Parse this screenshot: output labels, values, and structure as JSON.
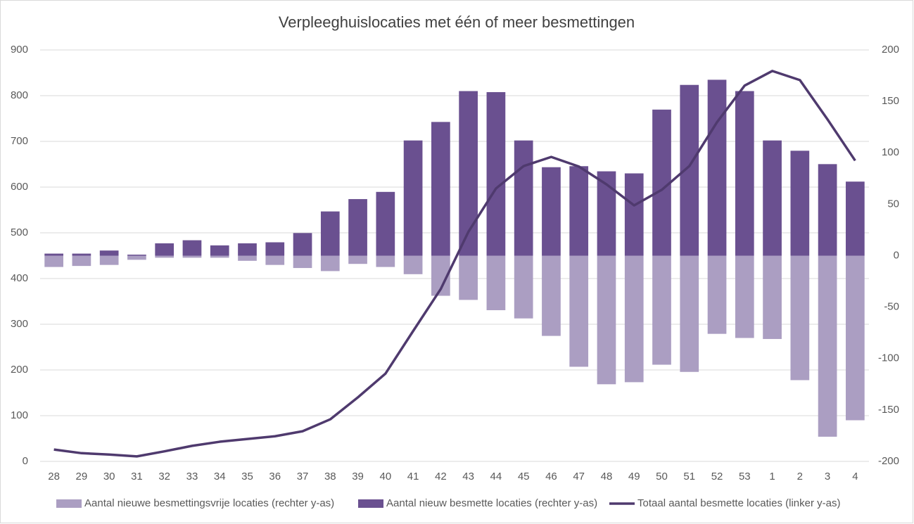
{
  "chart_data": {
    "type": "bar_line",
    "title": "Verpleeghuislocaties met één of meer besmettingen",
    "categories": [
      "28",
      "29",
      "30",
      "31",
      "32",
      "33",
      "34",
      "35",
      "36",
      "37",
      "38",
      "39",
      "40",
      "41",
      "42",
      "43",
      "44",
      "45",
      "46",
      "47",
      "48",
      "49",
      "50",
      "51",
      "52",
      "53",
      "1",
      "2",
      "3",
      "4"
    ],
    "series": [
      {
        "name": "Aantal nieuwe besmettingsvrije locaties (rechter y-as)",
        "color": "#ab9ec2",
        "type": "bar",
        "axis": "y2",
        "values": [
          -11,
          -10,
          -9,
          -4,
          -2,
          -2,
          -2,
          -5,
          -9,
          -12,
          -15,
          -8,
          -11,
          -18,
          -39,
          -43,
          -53,
          -61,
          -78,
          -108,
          -125,
          -123,
          -106,
          -113,
          -76,
          -80,
          -81,
          -121,
          -176,
          -160
        ]
      },
      {
        "name": "Aantal nieuw besmette locaties (rechter y-as)",
        "color": "#6a5090",
        "type": "bar",
        "axis": "y2",
        "values": [
          2,
          2,
          5,
          1,
          12,
          15,
          10,
          12,
          13,
          22,
          43,
          55,
          62,
          112,
          130,
          160,
          159,
          112,
          86,
          87,
          82,
          80,
          142,
          166,
          171,
          160,
          112,
          102,
          89,
          72
        ]
      },
      {
        "name": "Totaal aantal besmette locaties (linker y-as)",
        "color": "#4f3a6e",
        "type": "line",
        "axis": "y",
        "values": [
          26,
          18,
          15,
          11,
          22,
          34,
          43,
          49,
          55,
          66,
          92,
          140,
          192,
          285,
          377,
          502,
          597,
          646,
          666,
          645,
          606,
          560,
          594,
          646,
          742,
          822,
          854,
          834,
          748,
          658
        ]
      }
    ],
    "ylim": [
      0,
      900
    ],
    "yticks": [
      0,
      100,
      200,
      300,
      400,
      500,
      600,
      700,
      800,
      900
    ],
    "y2lim": [
      -200,
      200
    ],
    "y2ticks": [
      -200,
      -150,
      -100,
      -50,
      0,
      50,
      100,
      150,
      200
    ],
    "grid": true,
    "legend": "bottom"
  }
}
